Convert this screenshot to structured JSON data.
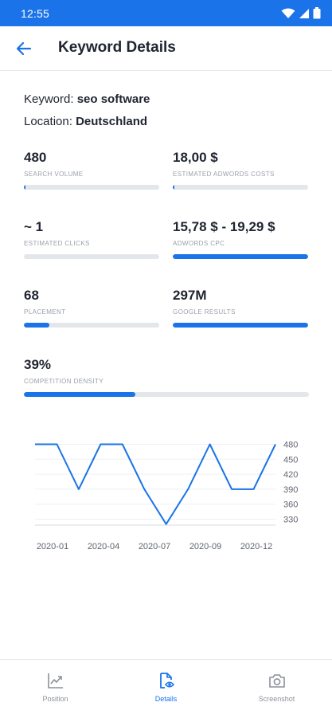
{
  "status_bar": {
    "time": "12:55"
  },
  "app_bar": {
    "title": "Keyword Details"
  },
  "keyword_info": {
    "keyword_label": "Keyword:",
    "keyword_value": "seo software",
    "location_label": "Location:",
    "location_value": "Deutschland"
  },
  "metrics": {
    "search_volume": {
      "value": "480",
      "label": "SEARCH VOLUME",
      "progress": 0.01
    },
    "estimated_adwords_costs": {
      "value": "18,00 $",
      "label": "ESTIMATED ADWORDS COSTS",
      "progress": 0.01
    },
    "estimated_clicks": {
      "value": "~ 1",
      "label": "ESTIMATED CLICKS",
      "progress": 0
    },
    "adwords_cpc": {
      "value": "15,78 $ - 19,29 $",
      "label": "ADWORDS CPC",
      "progress": 1.0
    },
    "placement": {
      "value": "68",
      "label": "PLACEMENT",
      "progress": 0.19
    },
    "google_results": {
      "value": "297M",
      "label": "GOOGLE RESULTS",
      "progress": 1.0
    },
    "competition_density": {
      "value": "39%",
      "label": "COMPETITION DENSITY",
      "progress": 0.39
    }
  },
  "chart_data": {
    "type": "line",
    "x_tick_labels": [
      "2020-01",
      "2020-04",
      "2020-07",
      "2020-09",
      "2020-12"
    ],
    "y_tick_labels": [
      "480",
      "450",
      "420",
      "390",
      "360",
      "330"
    ],
    "ylim": [
      318,
      484
    ],
    "series": [
      {
        "values": [
          480,
          480,
          390,
          480,
          480,
          390,
          320,
          390,
          480,
          390,
          390,
          480
        ]
      }
    ],
    "color": "#1a73e8"
  },
  "bottom_nav": {
    "items": [
      {
        "label": "Position",
        "icon": "trending-chart-icon",
        "active": false
      },
      {
        "label": "Details",
        "icon": "document-eye-icon",
        "active": true
      },
      {
        "label": "Screenshot",
        "icon": "camera-icon",
        "active": false
      }
    ]
  }
}
